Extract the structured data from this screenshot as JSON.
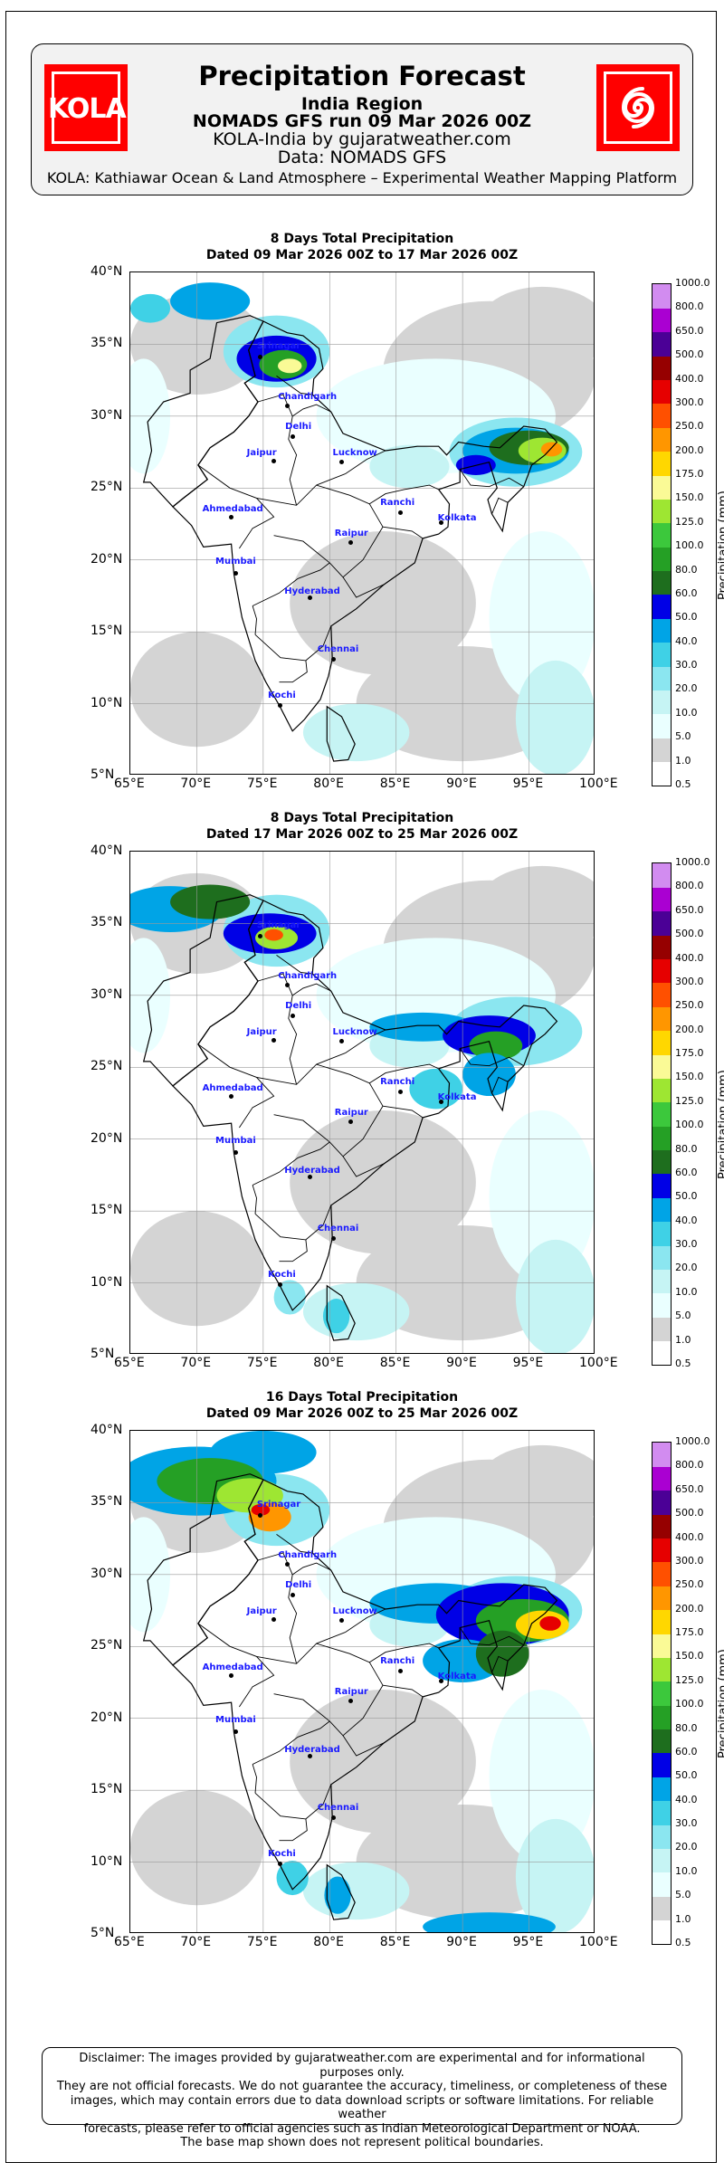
{
  "header": {
    "logo_left_text": "KOLA",
    "logo_right_icon": "spiral-cyclone-icon",
    "title": "Precipitation Forecast",
    "region": "India Region",
    "run": "NOMADS GFS run 09 Mar 2026 00Z",
    "source": "KOLA-India by gujaratweather.com",
    "data_source": "Data: NOMADS GFS",
    "platform": "KOLA: Kathiawar Ocean & Land Atmosphere – Experimental Weather Mapping Platform",
    "brand_color": "#ff0000"
  },
  "colorbar": {
    "title": "Precipitation (mm)",
    "levels": [
      "0.5",
      "1.0",
      "5.0",
      "10.0",
      "20.0",
      "30.0",
      "40.0",
      "50.0",
      "60.0",
      "80.0",
      "100.0",
      "125.0",
      "150.0",
      "175.0",
      "200.0",
      "250.0",
      "300.0",
      "400.0",
      "500.0",
      "650.0",
      "800.0",
      "1000.0"
    ],
    "colors": [
      "#ffffff",
      "#d4d4d4",
      "#eaffff",
      "#c6f4f4",
      "#8be6f0",
      "#3fd1e6",
      "#00a4e6",
      "#0000e6",
      "#1e6e1e",
      "#25a025",
      "#3cc83c",
      "#9ee632",
      "#fafa96",
      "#ffd700",
      "#ff9600",
      "#ff5000",
      "#e60000",
      "#960000",
      "#4b0096",
      "#aa00d2",
      "#d28cf0",
      "#ebc8f5"
    ]
  },
  "axes": {
    "y_ticks": [
      "40°N",
      "35°N",
      "30°N",
      "25°N",
      "20°N",
      "15°N",
      "10°N",
      "5°N"
    ],
    "x_ticks": [
      "65°E",
      "70°E",
      "75°E",
      "80°E",
      "85°E",
      "90°E",
      "95°E",
      "100°E"
    ]
  },
  "cities": [
    "Srinagar",
    "Chandigarh",
    "Delhi",
    "Jaipur",
    "Lucknow",
    "Ahmedabad",
    "Ranchi",
    "Kolkata",
    "Raipur",
    "Mumbai",
    "Hyderabad",
    "Chennai",
    "Kochi"
  ],
  "chart_data": [
    {
      "type": "heatmap",
      "title": "8 Days Total Precipitation",
      "subtitle": "Dated 09 Mar 2026 00Z to 17 Mar 2026 00Z",
      "xlim": [
        65,
        100
      ],
      "ylim": [
        5,
        40
      ],
      "units": "mm",
      "grid": true
    },
    {
      "type": "heatmap",
      "title": "8 Days Total Precipitation",
      "subtitle": "Dated 17 Mar 2026 00Z to 25 Mar 2026 00Z",
      "xlim": [
        65,
        100
      ],
      "ylim": [
        5,
        40
      ],
      "units": "mm",
      "grid": true
    },
    {
      "type": "heatmap",
      "title": "16 Days Total Precipitation",
      "subtitle": "Dated 09 Mar 2026 00Z to 25 Mar 2026 00Z",
      "xlim": [
        65,
        100
      ],
      "ylim": [
        5,
        40
      ],
      "units": "mm",
      "grid": true
    }
  ],
  "disclaimer": {
    "line1": "Disclaimer: The images provided by gujaratweather.com are experimental and for informational purposes only.",
    "line2": "They are not official forecasts. We do not guarantee the accuracy, timeliness, or completeness of these",
    "line3": "images, which may contain errors due to data download scripts or software limitations. For reliable weather",
    "line4": "forecasts, please refer to official agencies such as Indian Meteorological Department or NOAA.",
    "line5": "The base map shown does not represent political boundaries."
  }
}
